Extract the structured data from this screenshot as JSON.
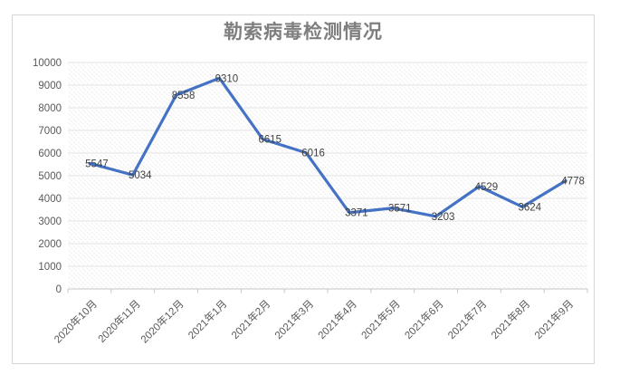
{
  "chart_data": {
    "type": "line",
    "title": "勒索病毒检测情况",
    "categories": [
      "2020年10月",
      "2020年11月",
      "2020年12月",
      "2021年1月",
      "2021年2月",
      "2021年3月",
      "2021年4月",
      "2021年5月",
      "2021年6月",
      "2021年7月",
      "2021年8月",
      "2021年9月"
    ],
    "values": [
      5547,
      5034,
      8558,
      9310,
      6615,
      6016,
      3371,
      3571,
      3203,
      4529,
      3624,
      4778
    ],
    "data_labels": [
      "5547",
      "5034",
      "8558",
      "9310",
      "6615",
      "6016",
      "3371",
      "3571",
      "3203",
      "4529",
      "3624",
      "4778"
    ],
    "xlabel": "",
    "ylabel": "",
    "ylim": [
      0,
      10000
    ],
    "ytick_step": 1000,
    "ytick_labels": [
      "0",
      "1000",
      "2000",
      "3000",
      "4000",
      "5000",
      "6000",
      "7000",
      "8000",
      "9000",
      "10000"
    ],
    "grid": true,
    "legend": false,
    "colors": {
      "line": "#4472C4",
      "title": "#7f7f7f",
      "data_label": "#404040",
      "axis_label": "#595959",
      "gridline": "#e0e0e0",
      "axis_line": "#c6c6c6",
      "plot_hatch": "#e9e9e9",
      "frame_border": "#d6d6d6",
      "background": "#ffffff"
    }
  }
}
